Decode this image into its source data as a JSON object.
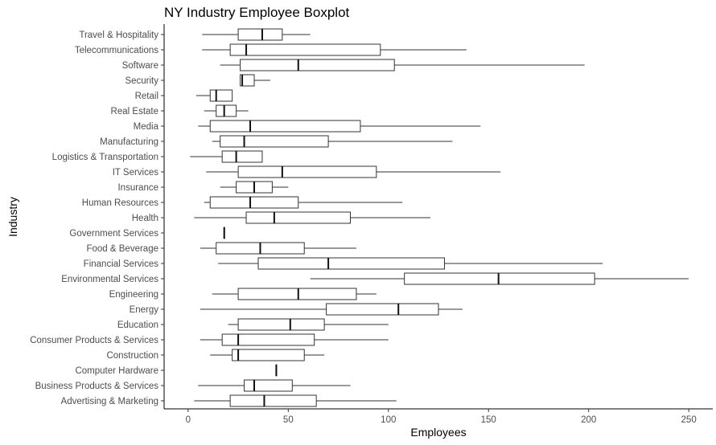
{
  "chart_data": {
    "type": "boxplot",
    "title": "NY Industry Employee Boxplot",
    "xlabel": "Employees",
    "ylabel": "Industry",
    "xlim": [
      -12,
      262
    ],
    "xticks": [
      0,
      50,
      100,
      150,
      200,
      250
    ],
    "grid": false,
    "orientation": "horizontal",
    "categories": [
      "Advertising & Marketing",
      "Business Products & Services",
      "Computer Hardware",
      "Construction",
      "Consumer Products & Services",
      "Education",
      "Energy",
      "Engineering",
      "Environmental Services",
      "Financial Services",
      "Food & Beverage",
      "Government Services",
      "Health",
      "Human Resources",
      "Insurance",
      "IT Services",
      "Logistics & Transportation",
      "Manufacturing",
      "Media",
      "Real Estate",
      "Retail",
      "Security",
      "Software",
      "Telecommunications",
      "Travel & Hospitality"
    ],
    "boxes": [
      {
        "min": 3,
        "q1": 21,
        "median": 38,
        "q3": 64,
        "max": 104
      },
      {
        "min": 5,
        "q1": 28,
        "median": 33,
        "q3": 52,
        "max": 81
      },
      {
        "min": 44,
        "q1": 44,
        "median": 44,
        "q3": 44,
        "max": 44
      },
      {
        "min": 11,
        "q1": 22,
        "median": 25,
        "q3": 58,
        "max": 68
      },
      {
        "min": 6,
        "q1": 17,
        "median": 25,
        "q3": 63,
        "max": 100
      },
      {
        "min": 20,
        "q1": 25,
        "median": 51,
        "q3": 68,
        "max": 100
      },
      {
        "min": 6,
        "q1": 69,
        "median": 105,
        "q3": 125,
        "max": 137
      },
      {
        "min": 12,
        "q1": 25,
        "median": 55,
        "q3": 84,
        "max": 94
      },
      {
        "min": 61,
        "q1": 108,
        "median": 155,
        "q3": 203,
        "max": 250
      },
      {
        "min": 15,
        "q1": 35,
        "median": 70,
        "q3": 128,
        "max": 207
      },
      {
        "min": 6,
        "q1": 14,
        "median": 36,
        "q3": 58,
        "max": 84
      },
      {
        "min": 18,
        "q1": 18,
        "median": 18,
        "q3": 18,
        "max": 18
      },
      {
        "min": 3,
        "q1": 29,
        "median": 43,
        "q3": 81,
        "max": 121
      },
      {
        "min": 8,
        "q1": 11,
        "median": 31,
        "q3": 55,
        "max": 107
      },
      {
        "min": 16,
        "q1": 24,
        "median": 33,
        "q3": 42,
        "max": 50
      },
      {
        "min": 9,
        "q1": 25,
        "median": 47,
        "q3": 94,
        "max": 156
      },
      {
        "min": 1,
        "q1": 17,
        "median": 24,
        "q3": 37,
        "max": 37
      },
      {
        "min": 12,
        "q1": 16,
        "median": 28,
        "q3": 70,
        "max": 132
      },
      {
        "min": 5,
        "q1": 11,
        "median": 31,
        "q3": 86,
        "max": 146
      },
      {
        "min": 8,
        "q1": 14,
        "median": 18,
        "q3": 24,
        "max": 30
      },
      {
        "min": 4,
        "q1": 11,
        "median": 14,
        "q3": 22,
        "max": 22
      },
      {
        "min": 26,
        "q1": 26,
        "median": 27,
        "q3": 33,
        "max": 41
      },
      {
        "min": 16,
        "q1": 26,
        "median": 55,
        "q3": 103,
        "max": 198
      },
      {
        "min": 7,
        "q1": 21,
        "median": 29,
        "q3": 96,
        "max": 139
      },
      {
        "min": 7,
        "q1": 25,
        "median": 37,
        "q3": 47,
        "max": 61
      }
    ]
  }
}
